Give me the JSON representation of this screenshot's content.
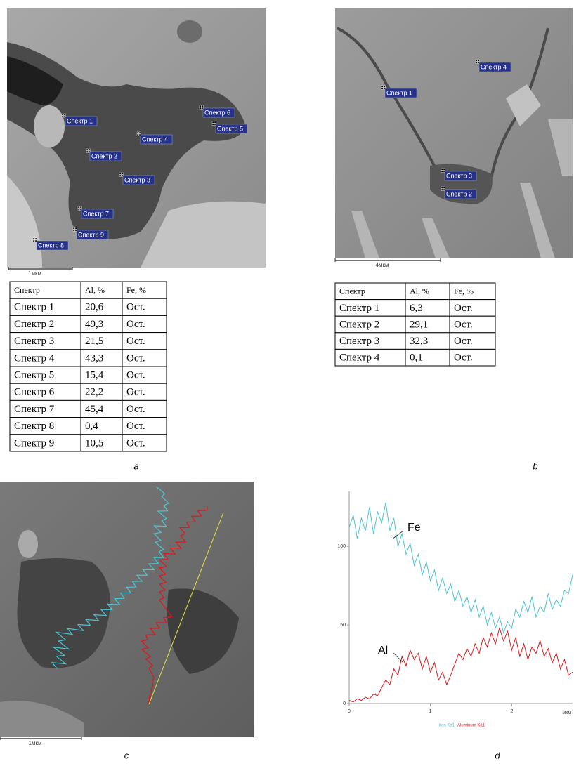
{
  "panels": [
    {
      "label": "a",
      "scale_bar": "1мкм",
      "table": {
        "header": [
          "Спектр",
          "Al, %",
          "Fe, %"
        ],
        "rows": [
          [
            "Спектр 1",
            "20,6",
            "Ост."
          ],
          [
            "Спектр 2",
            "49,3",
            "Ост."
          ],
          [
            "Спектр 3",
            "21,5",
            "Ост."
          ],
          [
            "Спектр 4",
            "43,3",
            "Ост."
          ],
          [
            "Спектр 5",
            "15,4",
            "Ост."
          ],
          [
            "Спектр 6",
            "22,2",
            "Ост."
          ],
          [
            "Спектр 7",
            "45,4",
            "Ост."
          ],
          [
            "Спектр 8",
            "0,4",
            "Ост."
          ],
          [
            "Спектр 9",
            "10,5",
            "Ост."
          ]
        ]
      }
    },
    {
      "label": "b",
      "scale_bar": "4мкм",
      "table": {
        "header": [
          "Спектр",
          "Al, %",
          "Fe, %"
        ],
        "rows": [
          [
            "Спектр 1",
            "6,3",
            "Ост."
          ],
          [
            "Спектр 2",
            "29,1",
            "Ост."
          ],
          [
            "Спектр 3",
            "32,3",
            "Ост."
          ],
          [
            "Спектр 4",
            "0,1",
            "Ост."
          ]
        ]
      }
    },
    {
      "label": "c",
      "scale_bar": "1мкм"
    },
    {
      "label": "d"
    }
  ],
  "chart_data": {
    "type": "line",
    "x": [
      0,
      0.05,
      0.1,
      0.15,
      0.2,
      0.25,
      0.3,
      0.35,
      0.4,
      0.45,
      0.5,
      0.55,
      0.6,
      0.65,
      0.7,
      0.75,
      0.8,
      0.85,
      0.9,
      0.95,
      1,
      1.05,
      1.1,
      1.15,
      1.2,
      1.25,
      1.3,
      1.35,
      1.4,
      1.45,
      1.5,
      1.55,
      1.6,
      1.65,
      1.7,
      1.75,
      1.8,
      1.85,
      1.9,
      1.95,
      2,
      2.05,
      2.1,
      2.15,
      2.2,
      2.25,
      2.3,
      2.35,
      2.4,
      2.45,
      2.5,
      2.55,
      2.6,
      2.65,
      2.7,
      2.75
    ],
    "series": [
      {
        "name": "Iron Ka1",
        "color": "#4cc4d2",
        "values": [
          112,
          120,
          105,
          118,
          110,
          125,
          108,
          122,
          115,
          128,
          110,
          118,
          100,
          108,
          95,
          102,
          88,
          95,
          82,
          90,
          78,
          85,
          72,
          80,
          70,
          76,
          65,
          72,
          62,
          68,
          58,
          66,
          55,
          62,
          50,
          58,
          48,
          55,
          45,
          52,
          48,
          60,
          55,
          65,
          58,
          68,
          55,
          62,
          58,
          70,
          60,
          66,
          62,
          72,
          70,
          82
        ]
      },
      {
        "name": "Aluminum Ka1",
        "color": "#e0161b",
        "values": [
          2,
          1,
          3,
          2,
          4,
          3,
          6,
          5,
          10,
          15,
          12,
          22,
          18,
          30,
          24,
          34,
          28,
          32,
          22,
          30,
          20,
          26,
          15,
          20,
          12,
          18,
          25,
          32,
          28,
          35,
          30,
          38,
          32,
          42,
          36,
          45,
          38,
          48,
          40,
          46,
          34,
          42,
          30,
          38,
          28,
          36,
          32,
          40,
          30,
          35,
          26,
          32,
          22,
          28,
          18,
          20
        ]
      }
    ],
    "xlim": [
      0,
      2.75
    ],
    "ylim": [
      0,
      135
    ],
    "xticks": [
      0,
      1,
      2
    ],
    "yticks": [
      0,
      50,
      100
    ],
    "x_label": "мкм",
    "annotations": [
      "Fe",
      "Al"
    ]
  }
}
